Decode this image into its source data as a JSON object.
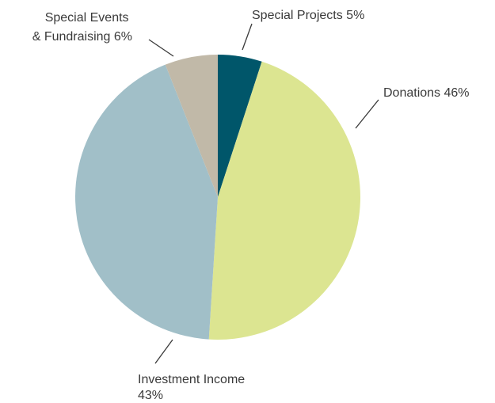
{
  "chart_data": {
    "type": "pie",
    "title": "",
    "start_angle_deg": 0,
    "direction": "clockwise",
    "slices": [
      {
        "name": "Special Projects",
        "value": 5,
        "label_lines": [
          "Special Projects 5%"
        ],
        "color": "#00566A"
      },
      {
        "name": "Donations",
        "value": 46,
        "label_lines": [
          "Donations 46%"
        ],
        "color": "#DCE591"
      },
      {
        "name": "Investment Income",
        "value": 43,
        "label_lines": [
          "Investment Income",
          "43%"
        ],
        "color": "#A1BFC8"
      },
      {
        "name": "Special Events & Fundraising",
        "value": 6,
        "label_lines": [
          "Special Events",
          "& Fundraising 6%"
        ],
        "color": "#C1B9A8"
      }
    ]
  }
}
